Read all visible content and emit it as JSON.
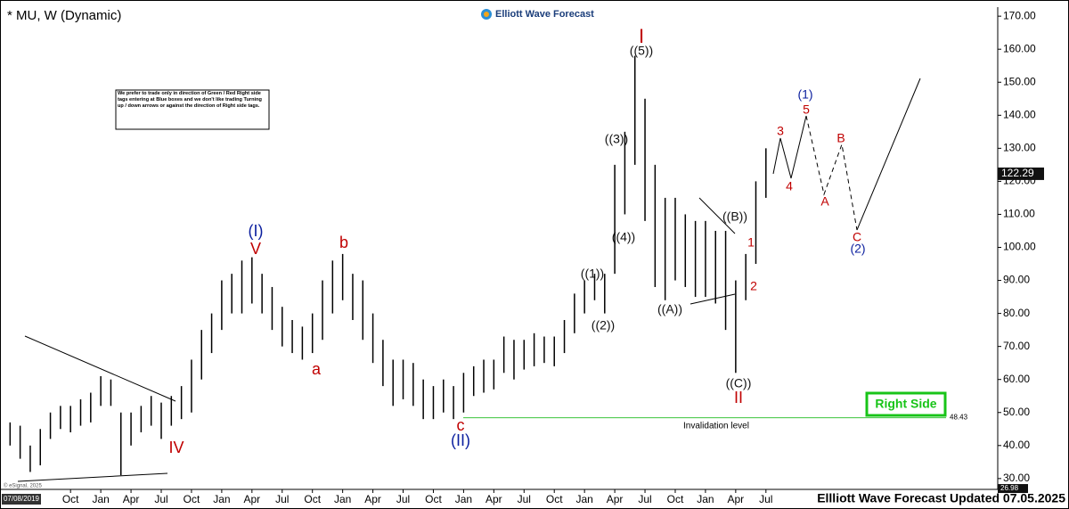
{
  "chart_data": {
    "type": "ohlc",
    "title": "* MU, W (Dynamic)",
    "color": "#000000",
    "x": [
      -6,
      -5,
      -4,
      -3,
      -2,
      -1,
      0,
      1,
      2,
      3,
      4,
      5,
      6,
      7,
      8,
      9,
      10,
      11,
      12,
      13,
      14,
      15,
      16,
      17,
      18,
      19,
      20,
      21,
      22,
      23,
      24,
      25,
      26,
      27,
      28,
      29,
      30,
      31,
      32,
      33,
      34,
      35,
      36,
      37,
      38,
      39,
      40,
      41,
      42,
      43,
      44,
      45,
      46,
      47,
      48,
      49,
      50,
      51,
      52,
      53,
      54,
      55,
      56,
      57,
      58,
      59,
      60,
      61,
      62,
      63,
      64,
      65,
      66,
      67,
      68,
      69
    ],
    "low": [
      40,
      36,
      32,
      34,
      42,
      45,
      44,
      46,
      47,
      52,
      52,
      31,
      40,
      44,
      46,
      42,
      46,
      48,
      50,
      60,
      68,
      75,
      80,
      80,
      83,
      80,
      75,
      70,
      68,
      66,
      68,
      72,
      80,
      84,
      78,
      72,
      65,
      58,
      52,
      54,
      52,
      48,
      48,
      50,
      48,
      50,
      55,
      56,
      57,
      62,
      60,
      63,
      64,
      65,
      64,
      68,
      74,
      80,
      84,
      80,
      92,
      110,
      125,
      108,
      88,
      84,
      90,
      88,
      85,
      85,
      83,
      75,
      62,
      84,
      95,
      115
    ],
    "high": [
      47,
      46,
      40,
      45,
      50,
      52,
      52,
      54,
      56,
      61,
      60,
      50,
      50,
      52,
      55,
      53,
      55,
      58,
      66,
      75,
      80,
      90,
      92,
      96,
      97,
      92,
      88,
      82,
      78,
      76,
      80,
      90,
      96,
      98,
      92,
      90,
      80,
      72,
      66,
      66,
      65,
      60,
      58,
      60,
      58,
      62,
      64,
      66,
      66,
      73,
      72,
      72,
      74,
      73,
      73,
      78,
      86,
      90,
      92,
      92,
      125,
      135,
      158,
      145,
      125,
      115,
      115,
      110,
      108,
      108,
      105,
      105,
      90,
      98,
      120,
      130
    ],
    "xlim": [
      -7,
      92
    ],
    "ylim": [
      27.8,
      172.2
    ],
    "xticks": [
      {
        "value": 0,
        "label": "Oct"
      },
      {
        "value": 3,
        "label": "Jan"
      },
      {
        "value": 6,
        "label": "Apr"
      },
      {
        "value": 9,
        "label": "Jul"
      },
      {
        "value": 12,
        "label": "Oct"
      },
      {
        "value": 15,
        "label": "Jan"
      },
      {
        "value": 18,
        "label": "Apr"
      },
      {
        "value": 21,
        "label": "Jul"
      },
      {
        "value": 24,
        "label": "Oct"
      },
      {
        "value": 27,
        "label": "Jan"
      },
      {
        "value": 30,
        "label": "Apr"
      },
      {
        "value": 33,
        "label": "Jul"
      },
      {
        "value": 36,
        "label": "Oct"
      },
      {
        "value": 39,
        "label": "Jan"
      },
      {
        "value": 42,
        "label": "Apr"
      },
      {
        "value": 45,
        "label": "Jul"
      },
      {
        "value": 48,
        "label": "Oct"
      },
      {
        "value": 51,
        "label": "Jan"
      },
      {
        "value": 54,
        "label": "Apr"
      },
      {
        "value": 57,
        "label": "Jul"
      },
      {
        "value": 60,
        "label": "Oct"
      },
      {
        "value": 63,
        "label": "Jan"
      },
      {
        "value": 66,
        "label": "Apr"
      },
      {
        "value": 69,
        "label": "Jul"
      }
    ],
    "yticks": [
      {
        "value": 30,
        "label": "30.00"
      },
      {
        "value": 40,
        "label": "40.00"
      },
      {
        "value": 50,
        "label": "50.00"
      },
      {
        "value": 60,
        "label": "60.00"
      },
      {
        "value": 70,
        "label": "70.00"
      },
      {
        "value": 80,
        "label": "80.00"
      },
      {
        "value": 90,
        "label": "90.00"
      },
      {
        "value": 100,
        "label": "100.00"
      },
      {
        "value": 110,
        "label": "110.00"
      },
      {
        "value": 120,
        "label": "120.00"
      },
      {
        "value": 130,
        "label": "130.00"
      },
      {
        "value": 140,
        "label": "140.00"
      },
      {
        "value": 150,
        "label": "150.00"
      },
      {
        "value": 160,
        "label": "160.00"
      },
      {
        "value": 170,
        "label": "170.00"
      }
    ],
    "last_price": 122.29,
    "invalidation": 48.43,
    "low_tag": 26.98
  },
  "brand": "Elliott Wave Forecast",
  "note": "We prefer to trade only in direction of Green / Red Right side tags entering at Blue boxes and we don't like trading Turning up / down arrows or against the direction of Right side tags.",
  "waves": [
    "I",
    "((5))",
    "(I)",
    "V",
    "b",
    "a",
    "IV",
    "c",
    "(II)",
    "((1))",
    "((2))",
    "((3))",
    "((4))",
    "((A))",
    "((B))",
    "((C))",
    "II",
    "1",
    "2",
    "3",
    "4",
    "(1)",
    "5",
    "A",
    "B",
    "C",
    "(2)"
  ],
  "invalidation_label": "Invalidation level",
  "right_side": "Right Side",
  "footer": "Ellliott Wave Forecast Updated 07.05.2025",
  "start_date": "07/08/2019",
  "copyright": "© eSignal, 2025"
}
